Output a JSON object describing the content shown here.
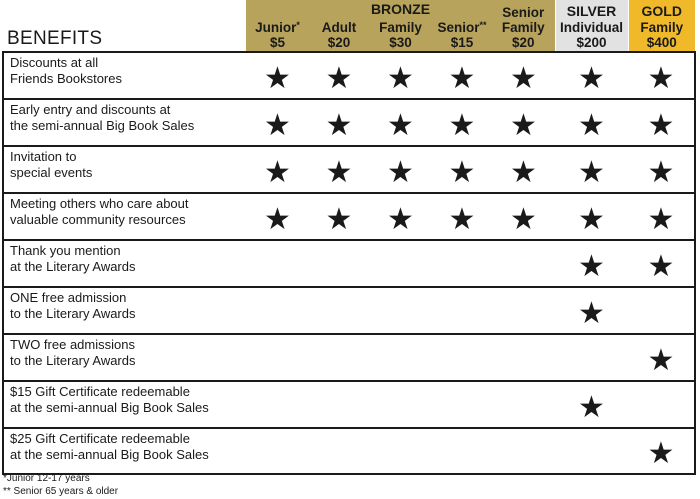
{
  "header": {
    "benefits_label": "BENEFITS",
    "bronze_label": "BRONZE",
    "silver_label": "SILVER",
    "gold_label": "GOLD",
    "tiers": [
      {
        "name": "Junior",
        "mark": "*",
        "price": "$5"
      },
      {
        "name": "Adult",
        "mark": "",
        "price": "$20"
      },
      {
        "name": "Family",
        "mark": "",
        "price": "$30"
      },
      {
        "name": "Senior",
        "mark": "**",
        "price": "$15"
      },
      {
        "name": "Senior Family",
        "mark": "",
        "price": "$20"
      },
      {
        "name": "Individual",
        "mark": "",
        "price": "$200"
      },
      {
        "name": "Family",
        "mark": "",
        "price": "$400"
      }
    ]
  },
  "colors": {
    "bronze": "#b8a35c",
    "silver": "#e2e2e2",
    "gold": "#f0b92a",
    "border": "#1a1a1a"
  },
  "star_icon": "star-icon",
  "star_glyph": "★",
  "rows": [
    {
      "line1": "Discounts at all",
      "line2": "Friends Bookstores",
      "stars": [
        true,
        true,
        true,
        true,
        true,
        true,
        true
      ]
    },
    {
      "line1": "Early entry and discounts at",
      "line2": "the semi-annual Big Book Sales",
      "stars": [
        true,
        true,
        true,
        true,
        true,
        true,
        true
      ]
    },
    {
      "line1": "Invitation to",
      "line2": "special events",
      "stars": [
        true,
        true,
        true,
        true,
        true,
        true,
        true
      ]
    },
    {
      "line1": "Meeting others who care about",
      "line2": "valuable community resources",
      "stars": [
        true,
        true,
        true,
        true,
        true,
        true,
        true
      ]
    },
    {
      "line1": "Thank you mention",
      "line2": "at the Literary Awards",
      "stars": [
        false,
        false,
        false,
        false,
        false,
        true,
        true
      ]
    },
    {
      "line1": "ONE free admission",
      "line2": "to the Literary Awards",
      "stars": [
        false,
        false,
        false,
        false,
        false,
        true,
        false
      ]
    },
    {
      "line1": "TWO free admissions",
      "line2": "to the Literary Awards",
      "stars": [
        false,
        false,
        false,
        false,
        false,
        false,
        true
      ]
    },
    {
      "line1": "$15 Gift Certificate redeemable",
      "line2": "at the semi-annual Big Book Sales",
      "stars": [
        false,
        false,
        false,
        false,
        false,
        true,
        false
      ]
    },
    {
      "line1": "$25 Gift Certificate redeemable",
      "line2": "at the semi-annual Big Book Sales",
      "stars": [
        false,
        false,
        false,
        false,
        false,
        false,
        true
      ]
    }
  ],
  "footnotes": {
    "junior": "*Junior 12-17 years",
    "senior": "** Senior 65 years & older"
  }
}
